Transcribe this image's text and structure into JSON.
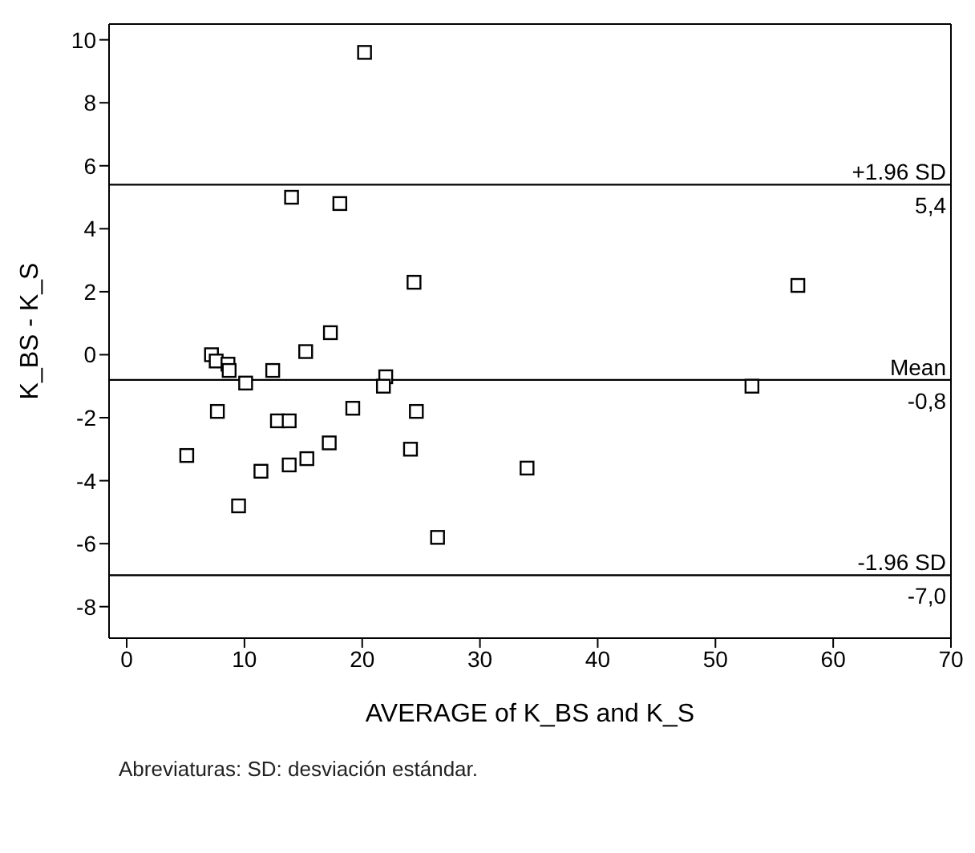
{
  "chart_data": {
    "type": "scatter",
    "xlabel": "AVERAGE of K_BS and K_S",
    "ylabel": "K_BS - K_S",
    "x": [
      20.2,
      14.0,
      18.1,
      24.4,
      17.3,
      15.2,
      7.2,
      7.6,
      8.6,
      8.7,
      12.4,
      10.1,
      22.0,
      21.8,
      7.7,
      12.8,
      13.8,
      19.2,
      24.6,
      17.2,
      24.1,
      5.1,
      15.3,
      13.8,
      11.4,
      34.0,
      9.5,
      26.4,
      57.0,
      53.1
    ],
    "series": [
      {
        "color": "#000000",
        "values": [
          9.6,
          5.0,
          4.8,
          2.3,
          0.7,
          0.1,
          0.0,
          -0.2,
          -0.3,
          -0.5,
          -0.5,
          -0.9,
          -0.7,
          -1.0,
          -1.8,
          -2.1,
          -2.1,
          -1.7,
          -1.8,
          -2.8,
          -3.0,
          -3.2,
          -3.3,
          -3.5,
          -3.7,
          -3.6,
          -4.8,
          -5.8,
          2.2,
          -1.0
        ]
      }
    ],
    "marker": "square",
    "xlim": [
      -1.5,
      70
    ],
    "xticks": [
      0,
      10,
      20,
      30,
      40,
      50,
      60,
      70
    ],
    "ylim": [
      -9,
      10.5
    ],
    "yticks": [
      -8,
      -6,
      -4,
      -2,
      0,
      2,
      4,
      6,
      8,
      10
    ],
    "legend": false,
    "ref_lines": [
      {
        "axis": "y",
        "value": 5.4,
        "label": "+1.96 SD",
        "color": "#000000"
      },
      {
        "axis": "y",
        "value": -0.8,
        "label": "Mean",
        "color": "#000000"
      },
      {
        "axis": "y",
        "value": -7.0,
        "label": "-1.96 SD",
        "color": "#000000"
      }
    ],
    "annotations": [
      {
        "text": "5,4",
        "y": 5.4
      },
      {
        "text": "-0,8",
        "y": -0.8
      },
      {
        "text": "-7,0",
        "y": -7.0
      },
      "Abreviaturas: SD: desviación estándar."
    ]
  }
}
